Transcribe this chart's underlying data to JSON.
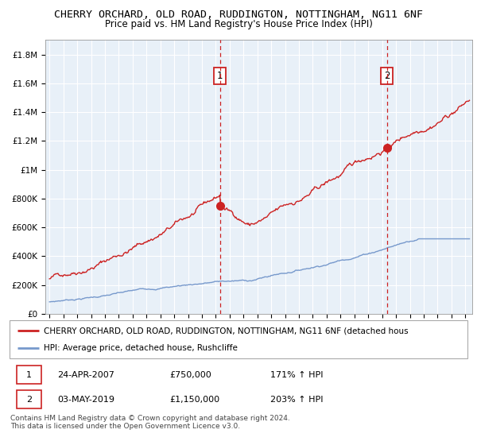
{
  "title": "CHERRY ORCHARD, OLD ROAD, RUDDINGTON, NOTTINGHAM, NG11 6NF",
  "subtitle": "Price paid vs. HM Land Registry's House Price Index (HPI)",
  "ylabel_ticks": [
    "£0",
    "£200K",
    "£400K",
    "£600K",
    "£800K",
    "£1M",
    "£1.2M",
    "£1.4M",
    "£1.6M",
    "£1.8M"
  ],
  "ytick_values": [
    0,
    200000,
    400000,
    600000,
    800000,
    1000000,
    1200000,
    1400000,
    1600000,
    1800000
  ],
  "ylim": [
    0,
    1900000
  ],
  "xlim_start": 1994.7,
  "xlim_end": 2025.5,
  "background_color": "#ffffff",
  "chart_bg_color": "#e8f0f8",
  "grid_color": "#ffffff",
  "red_line_color": "#cc2222",
  "blue_line_color": "#7799cc",
  "sale1_year": 2007.3,
  "sale1_price": 750000,
  "sale2_year": 2019.34,
  "sale2_price": 1150000,
  "sale1_label": "1",
  "sale2_label": "2",
  "vline_color": "#cc2222",
  "legend_red_label": "CHERRY ORCHARD, OLD ROAD, RUDDINGTON, NOTTINGHAM, NG11 6NF (detached hous",
  "legend_blue_label": "HPI: Average price, detached house, Rushcliffe",
  "table_row1": [
    "1",
    "24-APR-2007",
    "£750,000",
    "171% ↑ HPI"
  ],
  "table_row2": [
    "2",
    "03-MAY-2019",
    "£1,150,000",
    "203% ↑ HPI"
  ],
  "footnote": "Contains HM Land Registry data © Crown copyright and database right 2024.\nThis data is licensed under the Open Government Licence v3.0.",
  "title_fontsize": 9.5,
  "subtitle_fontsize": 8.5,
  "tick_fontsize": 7.5,
  "legend_fontsize": 8
}
